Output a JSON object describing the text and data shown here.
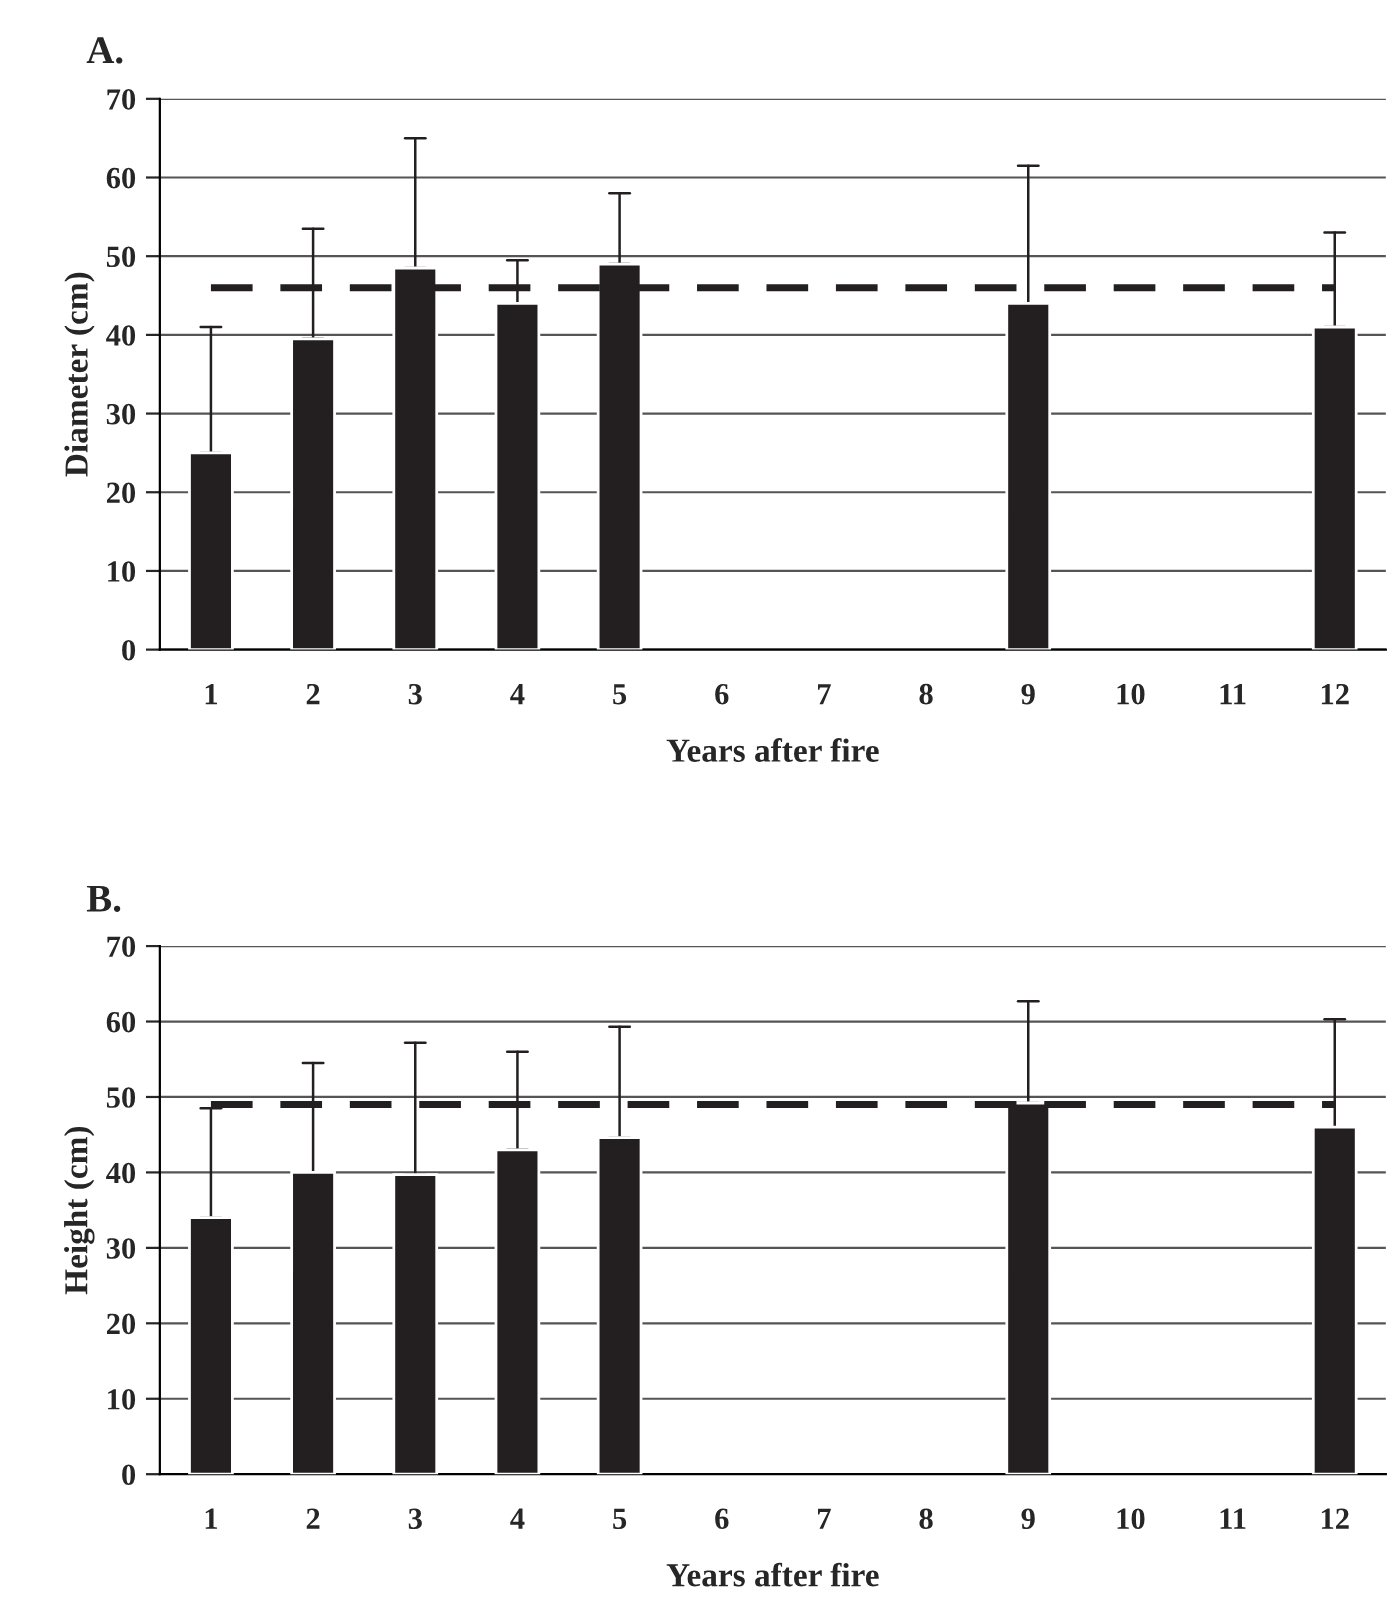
{
  "chart_data": [
    {
      "type": "bar",
      "title": "A.",
      "xlabel": "Years after fire",
      "ylabel": "Diameter (cm)",
      "categories": [
        "1",
        "2",
        "3",
        "4",
        "5",
        "6",
        "7",
        "8",
        "9",
        "10",
        "11",
        "12"
      ],
      "values": [
        25,
        39.5,
        48.5,
        44,
        49,
        null,
        null,
        null,
        44,
        null,
        null,
        41
      ],
      "errors": [
        [
          25,
          41
        ],
        [
          39.5,
          53.5
        ],
        [
          48.5,
          65
        ],
        [
          44,
          49.5
        ],
        [
          49,
          58
        ],
        null,
        null,
        null,
        [
          44,
          61.5
        ],
        null,
        null,
        [
          41,
          53
        ]
      ],
      "color": "#231f20",
      "ylim": [
        0,
        70
      ],
      "yticks": [
        0,
        10,
        20,
        30,
        40,
        50,
        60,
        70
      ],
      "grid": "y",
      "legend": false,
      "ref_lines": [
        {
          "axis": "y",
          "value": 46,
          "line_style": "dashed",
          "color": "#231f20"
        }
      ]
    },
    {
      "type": "bar",
      "title": "B.",
      "xlabel": "Years after fire",
      "ylabel": "Height (cm)",
      "categories": [
        "1",
        "2",
        "3",
        "4",
        "5",
        "6",
        "7",
        "8",
        "9",
        "10",
        "11",
        "12"
      ],
      "values": [
        34,
        40,
        39.7,
        43,
        44.6,
        null,
        null,
        null,
        49.2,
        null,
        null,
        46
      ],
      "errors": [
        [
          34,
          48.5
        ],
        [
          40,
          54.5
        ],
        [
          39.7,
          57.2
        ],
        [
          43,
          56
        ],
        [
          44.6,
          59.3
        ],
        null,
        null,
        null,
        [
          49.2,
          62.7
        ],
        null,
        null,
        [
          46,
          60.3
        ]
      ],
      "color": "#231f20",
      "ylim": [
        0,
        70
      ],
      "yticks": [
        0,
        10,
        20,
        30,
        40,
        50,
        60,
        70
      ],
      "grid": "y",
      "legend": false,
      "ref_lines": [
        {
          "axis": "y",
          "value": 49,
          "line_style": "dashed",
          "color": "#231f20"
        }
      ]
    }
  ]
}
